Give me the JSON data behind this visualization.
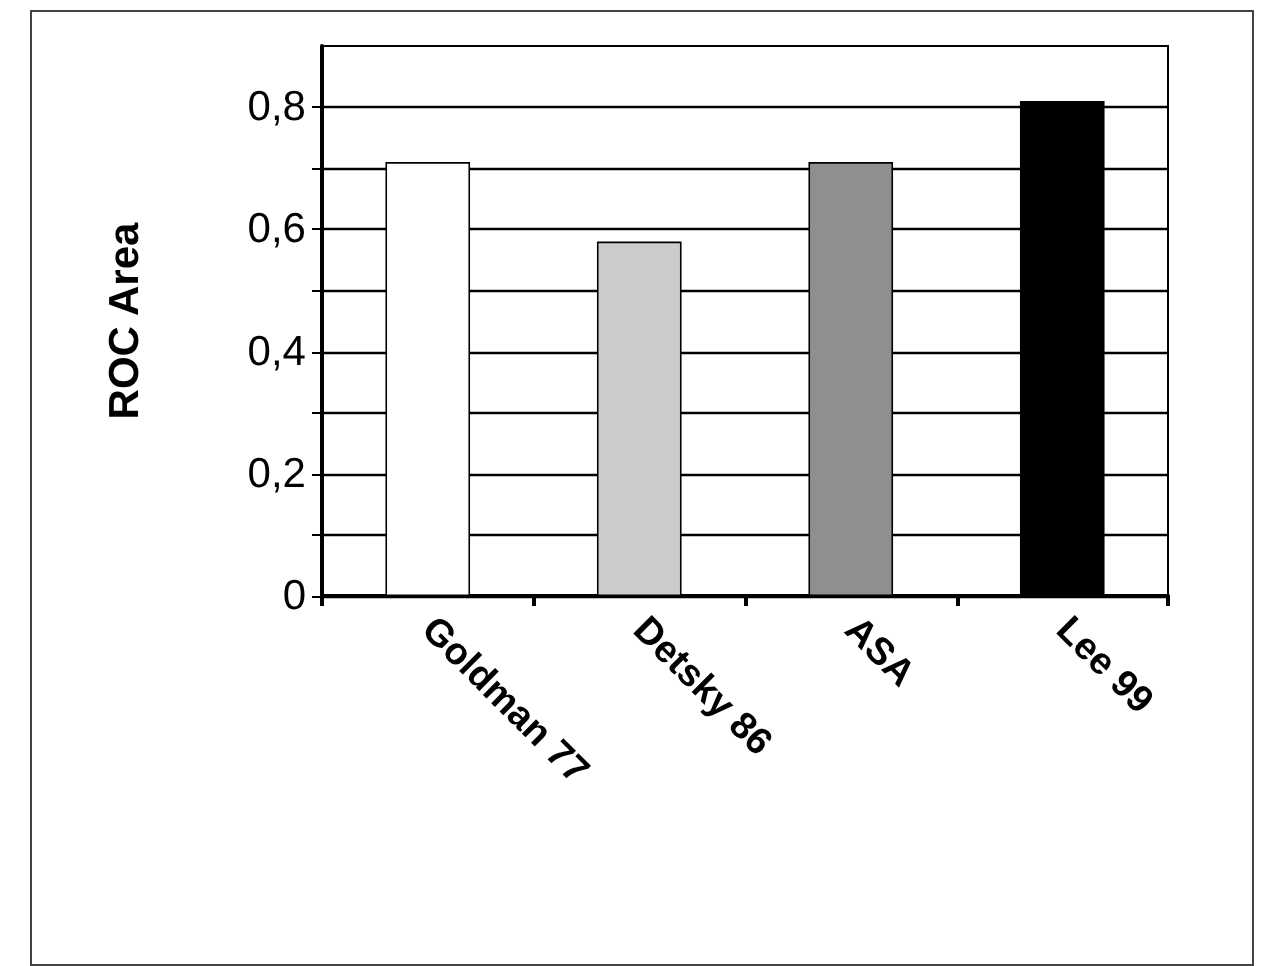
{
  "chart_data": {
    "type": "bar",
    "ylabel": "ROC Area",
    "categories": [
      "Goldman 77",
      "Detsky 86",
      "ASA",
      "Lee 99"
    ],
    "values": [
      0.71,
      0.58,
      0.71,
      0.81
    ],
    "colors": [
      "#ffffff",
      "#cccccc",
      "#8f8f8f",
      "#000000"
    ],
    "ylim": [
      0,
      0.9
    ],
    "yticks": [
      0,
      {
        "value": 0.1,
        "label": null
      },
      {
        "value": 0.2,
        "label": "0,2"
      },
      {
        "value": 0.3,
        "label": null
      },
      {
        "value": 0.4,
        "label": "0,4"
      },
      {
        "value": 0.5,
        "label": null
      },
      {
        "value": 0.6,
        "label": "0,6"
      },
      {
        "value": 0.7,
        "label": null
      },
      {
        "value": 0.8,
        "label": "0,8"
      }
    ],
    "grid": true
  }
}
